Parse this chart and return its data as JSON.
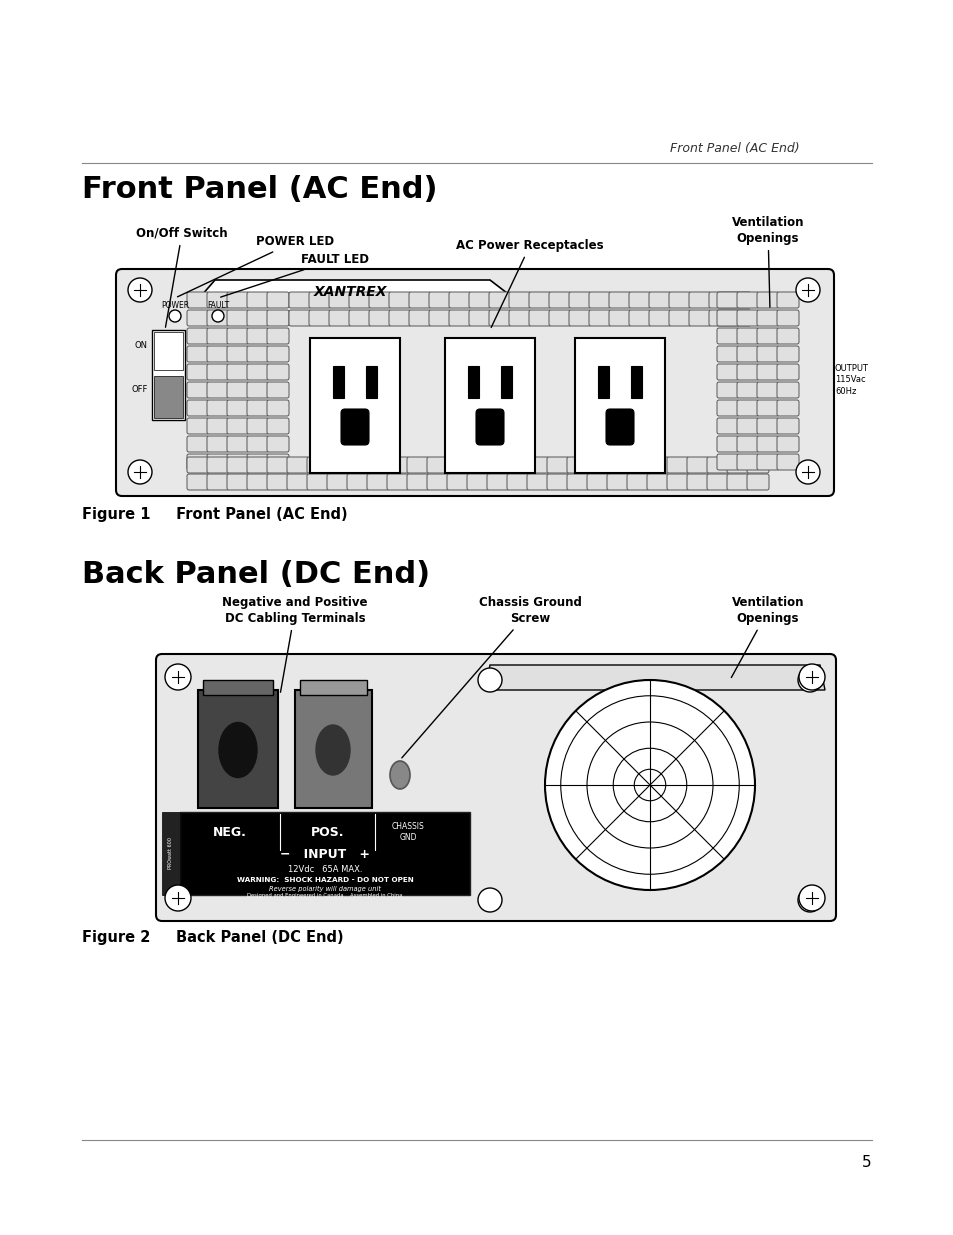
{
  "page_header": "Front Panel (AC End)",
  "section1_title": "Front Panel (AC End)",
  "section2_title": "Back Panel (DC End)",
  "fig1_caption": "Figure 1     Front Panel (AC End)",
  "fig2_caption": "Figure 2     Back Panel (DC End)",
  "page_number": "5",
  "bg_color": "#ffffff",
  "text_color": "#000000"
}
